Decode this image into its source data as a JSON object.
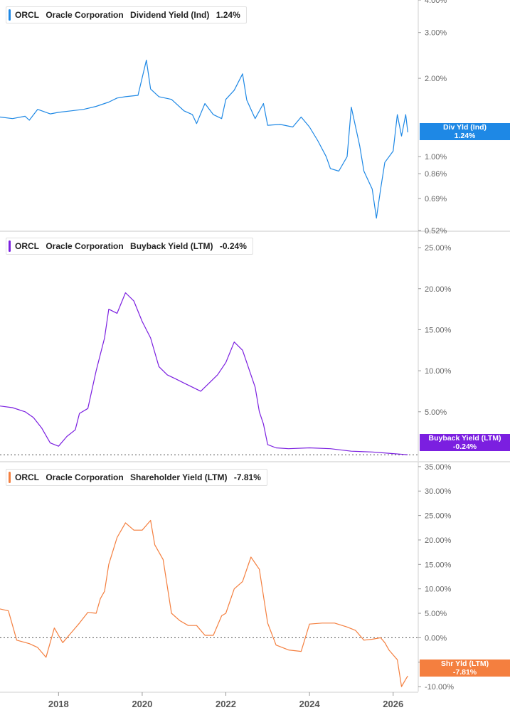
{
  "colors": {
    "div": "#1e88e5",
    "buy": "#7b1fe0",
    "shr": "#f47f3f",
    "grid": "#d6d6d6",
    "axis": "#666666"
  },
  "panels": [
    {
      "ticker": "ORCL",
      "company": "Oracle Corporation",
      "metric": "Dividend Yield (Ind)",
      "value": "1.24%",
      "tag_title": "Div Yld (Ind)",
      "tag_value": "1.24%"
    },
    {
      "ticker": "ORCL",
      "company": "Oracle Corporation",
      "metric": "Buyback Yield (LTM)",
      "value": "-0.24%",
      "tag_title": "Buyback Yield (LTM)",
      "tag_value": "-0.24%"
    },
    {
      "ticker": "ORCL",
      "company": "Oracle Corporation",
      "metric": "Shareholder Yield (LTM)",
      "value": "-7.81%",
      "tag_title": "Shr Yld (LTM)",
      "tag_value": "-7.81%"
    }
  ],
  "x_ticks": [
    "2018",
    "2020",
    "2022",
    "2024",
    "2026"
  ],
  "chart_data": [
    {
      "type": "line",
      "scale": "log",
      "x_range": [
        2016.6,
        2026.6
      ],
      "y_range": [
        0.52,
        4.0
      ],
      "y_ticks": [
        "4.00%",
        "3.00%",
        "2.00%",
        "1.00%",
        "0.86%",
        "0.69%",
        "0.52%"
      ],
      "y_tick_values": [
        4.0,
        3.0,
        2.0,
        1.0,
        0.86,
        0.69,
        0.52
      ],
      "x": [
        2016.6,
        2016.9,
        2017.2,
        2017.3,
        2017.5,
        2017.8,
        2018.0,
        2018.3,
        2018.6,
        2018.9,
        2019.2,
        2019.4,
        2019.6,
        2019.9,
        2020.1,
        2020.2,
        2020.4,
        2020.7,
        2021.0,
        2021.2,
        2021.3,
        2021.5,
        2021.7,
        2021.9,
        2022.0,
        2022.2,
        2022.4,
        2022.5,
        2022.7,
        2022.9,
        2023.0,
        2023.3,
        2023.6,
        2023.8,
        2024.0,
        2024.2,
        2024.4,
        2024.5,
        2024.7,
        2024.9,
        2025.0,
        2025.2,
        2025.3,
        2025.5,
        2025.6,
        2025.7,
        2025.8,
        2026.0,
        2026.1,
        2026.2,
        2026.3,
        2026.35
      ],
      "values": [
        1.42,
        1.4,
        1.43,
        1.38,
        1.52,
        1.46,
        1.48,
        1.5,
        1.52,
        1.56,
        1.62,
        1.68,
        1.7,
        1.72,
        2.35,
        1.82,
        1.7,
        1.66,
        1.5,
        1.45,
        1.34,
        1.6,
        1.45,
        1.4,
        1.66,
        1.8,
        2.08,
        1.65,
        1.4,
        1.6,
        1.32,
        1.33,
        1.3,
        1.42,
        1.3,
        1.15,
        1.0,
        0.9,
        0.88,
        1.0,
        1.55,
        1.1,
        0.88,
        0.75,
        0.58,
        0.75,
        0.95,
        1.05,
        1.45,
        1.2,
        1.45,
        1.24
      ]
    },
    {
      "type": "line",
      "y_range": [
        -1.0,
        27.0
      ],
      "y_ticks": [
        "25.00%",
        "20.00%",
        "15.00%",
        "10.00%",
        "5.00%"
      ],
      "y_tick_values": [
        25,
        20,
        15,
        10,
        5
      ],
      "zero_line": -0.24,
      "x": [
        2016.6,
        2016.9,
        2017.2,
        2017.4,
        2017.6,
        2017.8,
        2018.0,
        2018.2,
        2018.4,
        2018.5,
        2018.7,
        2018.9,
        2019.0,
        2019.1,
        2019.2,
        2019.4,
        2019.6,
        2019.8,
        2020.0,
        2020.2,
        2020.4,
        2020.6,
        2020.8,
        2021.0,
        2021.2,
        2021.4,
        2021.6,
        2021.8,
        2022.0,
        2022.2,
        2022.4,
        2022.6,
        2022.7,
        2022.8,
        2022.9,
        2023.0,
        2023.2,
        2023.5,
        2024.0,
        2024.5,
        2025.0,
        2025.5,
        2026.0,
        2026.35
      ],
      "values": [
        5.7,
        5.5,
        5.0,
        4.3,
        3.0,
        1.2,
        0.8,
        2.0,
        2.8,
        4.8,
        5.4,
        10.0,
        12.0,
        14.0,
        17.5,
        17.0,
        19.5,
        18.5,
        16.0,
        14.0,
        10.5,
        9.5,
        9.0,
        8.5,
        8.0,
        7.5,
        8.5,
        9.5,
        11.0,
        13.5,
        12.5,
        9.5,
        8.0,
        5.0,
        3.5,
        1.0,
        0.6,
        0.5,
        0.6,
        0.5,
        0.2,
        0.1,
        -0.1,
        -0.24
      ]
    },
    {
      "type": "line",
      "y_range": [
        -11.0,
        36.0
      ],
      "y_ticks": [
        "35.00%",
        "30.00%",
        "25.00%",
        "20.00%",
        "15.00%",
        "10.00%",
        "5.00%",
        "0.00%",
        "-5.00%",
        "-10.00%"
      ],
      "y_tick_values": [
        35,
        30,
        25,
        20,
        15,
        10,
        5,
        0,
        -5,
        -10
      ],
      "zero_line": 0,
      "x": [
        2016.6,
        2016.8,
        2017.0,
        2017.3,
        2017.5,
        2017.7,
        2017.9,
        2018.1,
        2018.3,
        2018.5,
        2018.7,
        2018.9,
        2019.0,
        2019.1,
        2019.2,
        2019.4,
        2019.6,
        2019.8,
        2020.0,
        2020.2,
        2020.3,
        2020.5,
        2020.7,
        2020.9,
        2021.1,
        2021.3,
        2021.5,
        2021.7,
        2021.9,
        2022.0,
        2022.2,
        2022.4,
        2022.6,
        2022.8,
        2023.0,
        2023.2,
        2023.5,
        2023.8,
        2024.0,
        2024.3,
        2024.6,
        2024.9,
        2025.1,
        2025.3,
        2025.5,
        2025.7,
        2025.8,
        2025.9,
        2026.0,
        2026.1,
        2026.2,
        2026.3,
        2026.35
      ],
      "values": [
        5.9,
        5.5,
        -0.5,
        -1.2,
        -2.0,
        -4.0,
        2.0,
        -1.0,
        1.0,
        3.0,
        5.2,
        5.0,
        8.0,
        9.5,
        15.0,
        20.5,
        23.5,
        22.0,
        22.0,
        24.0,
        19.0,
        16.0,
        5.0,
        3.5,
        2.5,
        2.5,
        0.5,
        0.5,
        4.5,
        5.0,
        10.0,
        11.5,
        16.5,
        14.0,
        3.0,
        -1.5,
        -2.5,
        -2.8,
        2.8,
        3.0,
        3.0,
        2.2,
        1.5,
        -0.5,
        -0.3,
        0.0,
        -1.0,
        -2.5,
        -3.5,
        -4.5,
        -10.0,
        -8.5,
        -7.81
      ]
    }
  ]
}
